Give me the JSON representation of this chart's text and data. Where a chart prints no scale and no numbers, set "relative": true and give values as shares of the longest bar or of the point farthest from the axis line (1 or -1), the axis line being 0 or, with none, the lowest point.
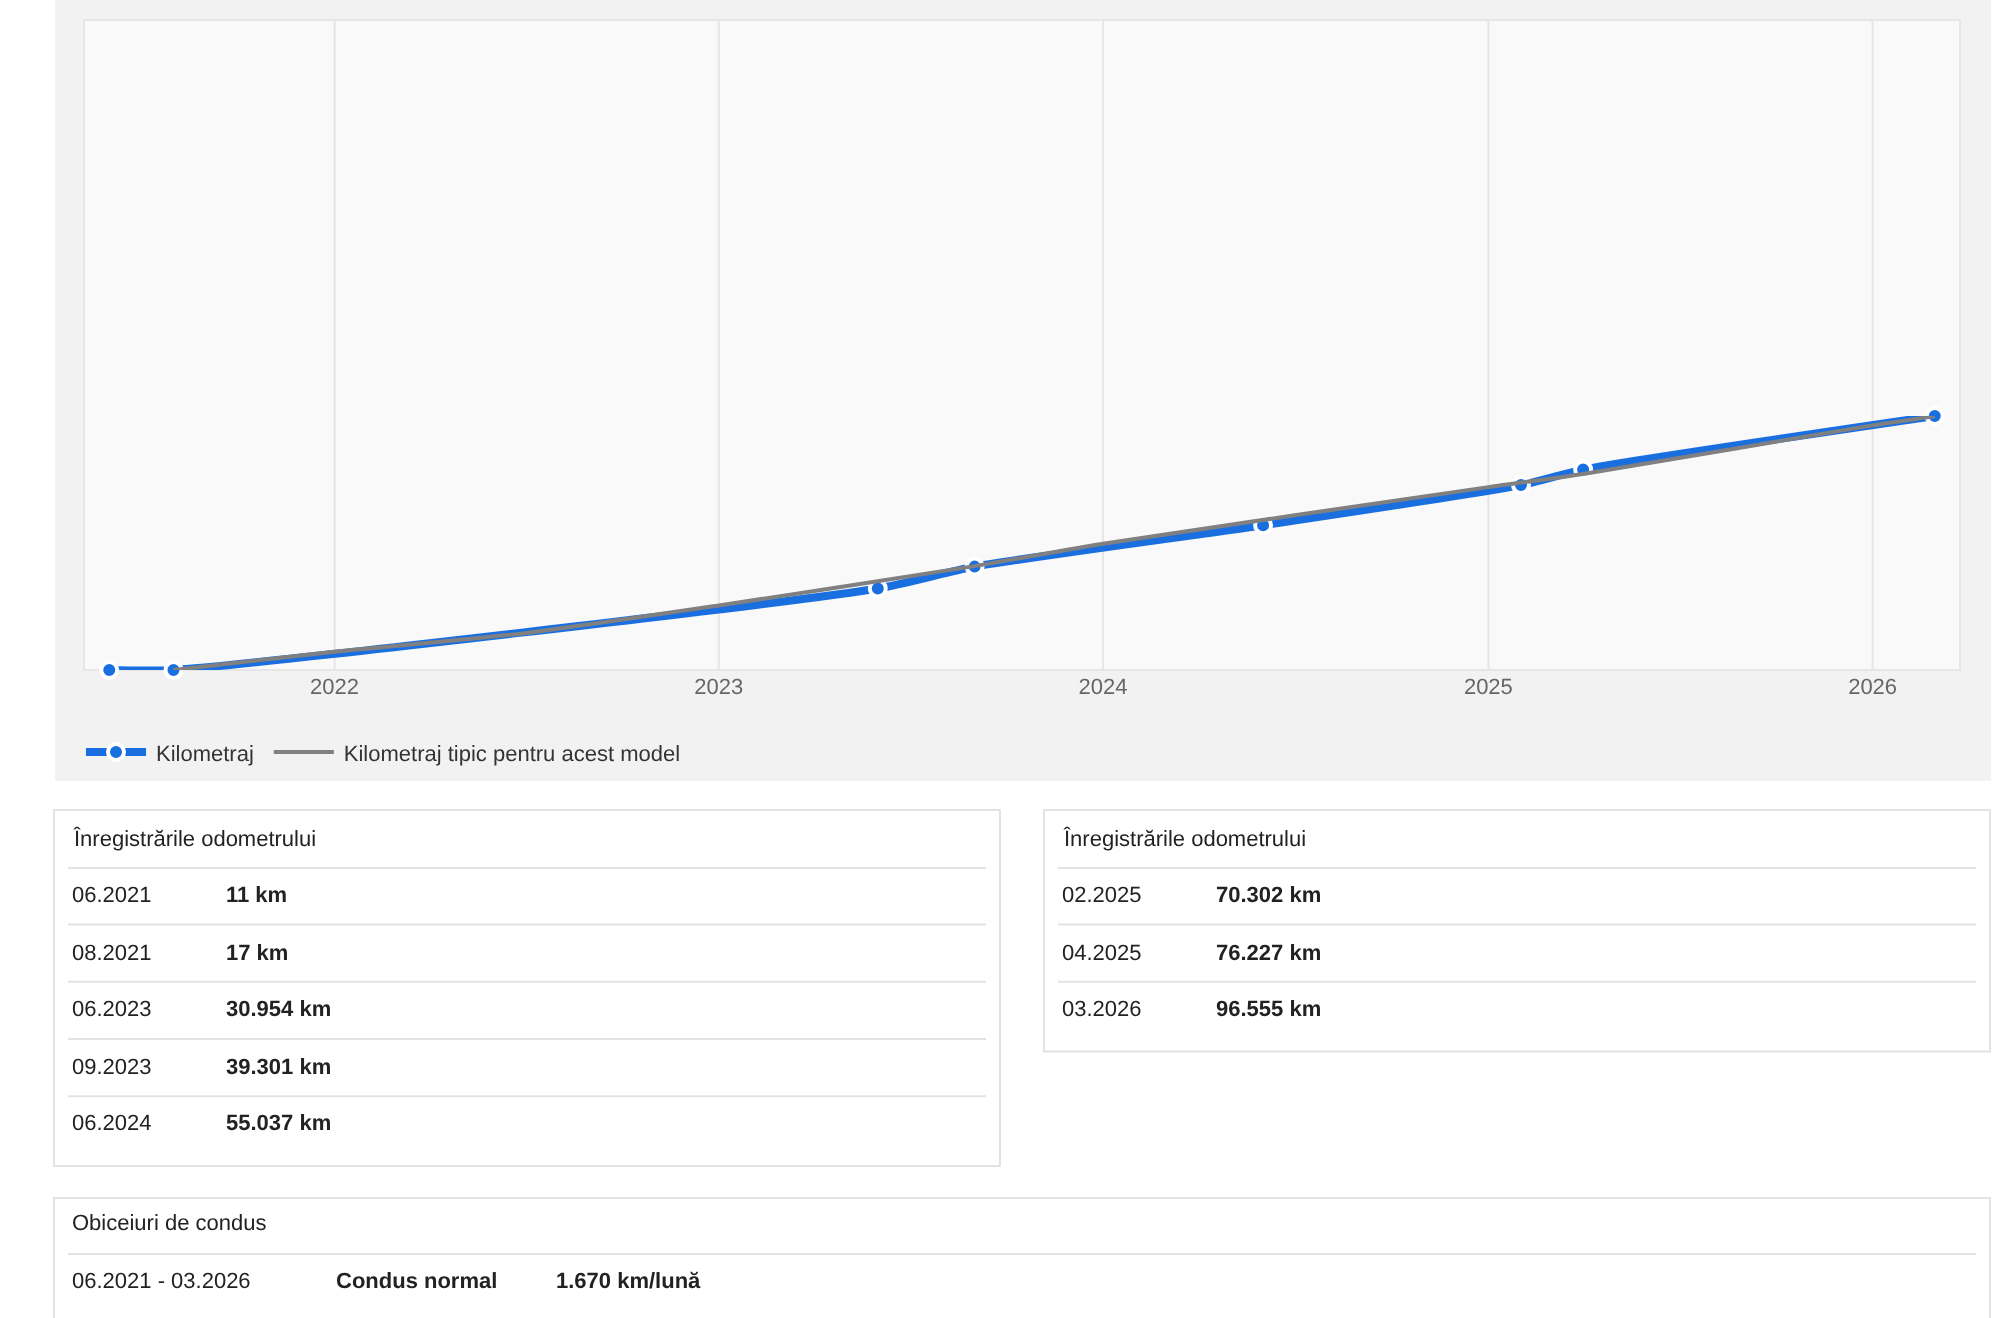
{
  "chart_data": [
    {
      "type": "line",
      "relative": true,
      "xlim": [
        "2021-05-08",
        "2026-03-25"
      ],
      "xticks": [
        {
          "value": "2022-01-01",
          "label": "2022"
        },
        {
          "value": "2023-01-01",
          "label": "2023"
        },
        {
          "value": "2024-01-01",
          "label": "2024"
        },
        {
          "value": "2025-01-01",
          "label": "2025"
        },
        {
          "value": "2026-01-01",
          "label": "2026"
        }
      ],
      "tick_labels": "x",
      "grid": "x",
      "legend": "bottom left",
      "series": [
        {
          "name": "Kilometraj",
          "color": "#1a6fe0",
          "marker": "circle",
          "x": [
            "2021-06",
            "2021-08",
            "2023-06",
            "2023-09",
            "2024-06",
            "2025-02",
            "2025-04",
            "2026-03"
          ],
          "values": [
            0.0001,
            0.0002,
            0.321,
            0.407,
            0.57,
            0.728,
            0.789,
            1
          ]
        },
        {
          "name": "Kilometraj tipic pentru acest model",
          "color": "#808080",
          "marker": "none",
          "x": [
            "2021-08",
            "2022-01",
            "2022-07",
            "2023-01",
            "2023-09",
            "2024-01",
            "2025-01",
            "2025-04",
            "2026-01",
            "2026-03"
          ],
          "values": [
            0.0002,
            0.072,
            0.145,
            0.254,
            0.409,
            0.497,
            0.72,
            0.772,
            0.963,
            0.999
          ]
        }
      ]
    },
    {
      "type": "other",
      "annotations": [
        "Înregistrările odometrului",
        "06.2021",
        "11 km",
        "08.2021",
        "17 km",
        "06.2023",
        "30.954 km",
        "09.2023",
        "39.301 km",
        "06.2024",
        "55.037 km"
      ]
    },
    {
      "type": "other",
      "annotations": [
        "Înregistrările odometrului",
        "02.2025",
        "70.302 km",
        "04.2025",
        "76.227 km",
        "03.2026",
        "96.555 km"
      ]
    },
    {
      "type": "other",
      "annotations": [
        "Obiceiuri de condus",
        "06.2021 - 03.2026",
        "Condus normal",
        "1.670 km/lună"
      ]
    }
  ]
}
